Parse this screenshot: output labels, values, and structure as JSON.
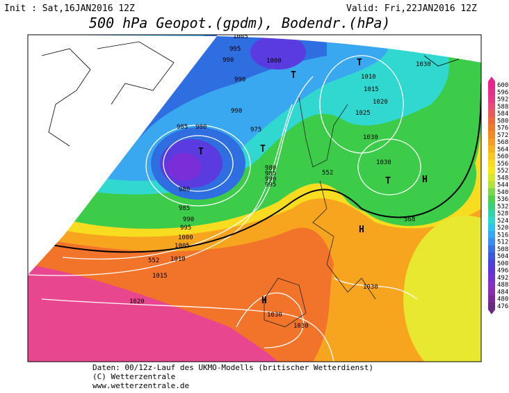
{
  "header": {
    "init": "Init : Sat,16JAN2016 12Z",
    "valid": "Valid: Fri,22JAN2016 12Z",
    "title": "500 hPa Geopot.(gpdm), Bodendr.(hPa)"
  },
  "colorbar": {
    "levels": [
      600,
      596,
      592,
      588,
      584,
      580,
      576,
      572,
      568,
      564,
      560,
      556,
      552,
      548,
      544,
      540,
      536,
      532,
      528,
      524,
      520,
      516,
      512,
      508,
      504,
      500,
      496,
      492,
      488,
      484,
      480,
      476
    ],
    "colors": [
      "#e8248c",
      "#e62f8a",
      "#e63a86",
      "#e84a7a",
      "#eb5a5a",
      "#ee6a3a",
      "#f07a2a",
      "#f38a24",
      "#f59e20",
      "#f7b31f",
      "#f8c81e",
      "#f8dc1c",
      "#f2ea1a",
      "#d6e82a",
      "#b4e23a",
      "#7cd84a",
      "#50d050",
      "#3cd07c",
      "#30d4a8",
      "#2ed8d0",
      "#30c4ec",
      "#34a8f2",
      "#3a8cf0",
      "#3a70e4",
      "#3c56e0",
      "#4a40dc",
      "#5c34d8",
      "#7030d4",
      "#8430c4",
      "#8a2cb0",
      "#7a2a98",
      "#6a2a80"
    ]
  },
  "labels": [
    "1005",
    "995",
    "990",
    "1000",
    "990",
    "990",
    "985",
    "980",
    "975",
    "980",
    "985",
    "990",
    "995",
    "980",
    "985",
    "990",
    "995",
    "1000",
    "1005",
    "1010",
    "552",
    "1015",
    "1020",
    "1030",
    "1030",
    "1030",
    "1030",
    "1030",
    "1025",
    "1020",
    "1015",
    "1010",
    "552",
    "568",
    "1030"
  ],
  "markers": [
    "T",
    "T",
    "T",
    "T",
    "T",
    "H",
    "H",
    "H"
  ],
  "footer": [
    "Daten: 00/12z-Lauf des UKMO-Modells (britischer Wetterdienst)",
    "(C) Wetterzentrale",
    "www.wetterzentrale.de"
  ]
}
